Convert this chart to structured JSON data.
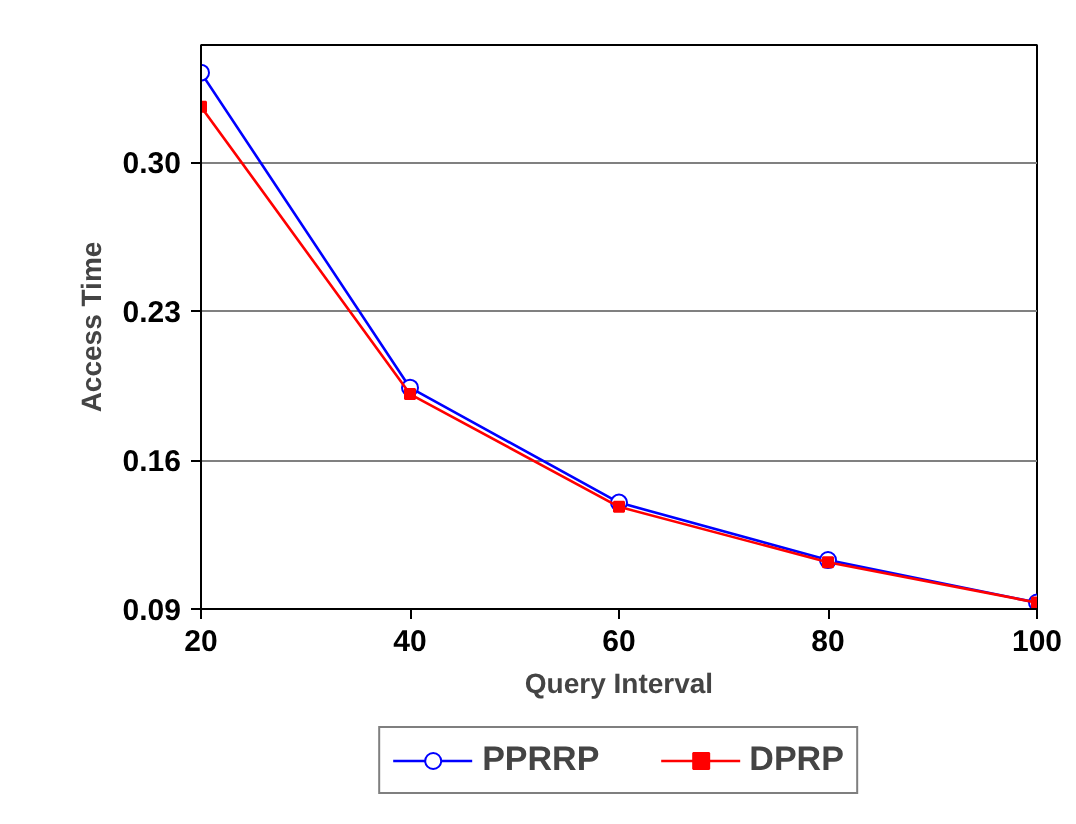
{
  "chart_data": {
    "type": "line",
    "xlabel": "Query Interval",
    "ylabel": "Access Time",
    "x": [
      20,
      40,
      60,
      80,
      100
    ],
    "series": [
      {
        "name": "PPRRP",
        "color": "#0000ff",
        "marker": "circle",
        "values": [
          0.342,
          0.194,
          0.14,
          0.113,
          0.093
        ]
      },
      {
        "name": "DPRP",
        "color": "#ff0000",
        "marker": "square",
        "values": [
          0.326,
          0.191,
          0.138,
          0.112,
          0.093
        ]
      }
    ],
    "xlim": [
      20,
      100
    ],
    "xticks": [
      20,
      40,
      60,
      80,
      100
    ],
    "ylim": [
      0.09,
      0.355
    ],
    "yticks": [
      0.09,
      0.16,
      0.23,
      {
        "value": 0.3,
        "label": "0.30"
      }
    ],
    "grid": "y",
    "legend": "bottom",
    "line_style": "solid"
  }
}
